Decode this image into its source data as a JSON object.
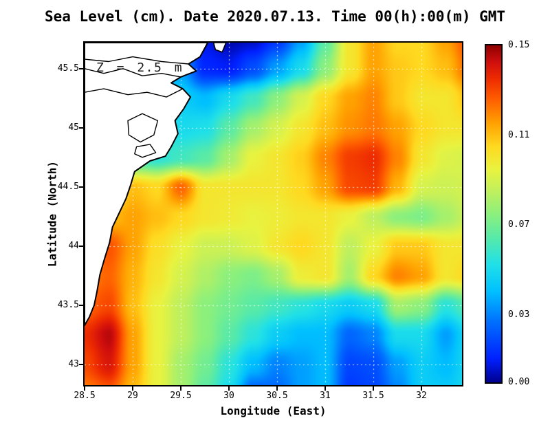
{
  "chart_data": {
    "type": "heatmap",
    "title": "Sea Level (cm). Date 2020.07.13. Time 00(h):00(m) GMT",
    "xlabel": "Longitude (East)",
    "ylabel": "Latitude (North)",
    "annotation": "Z = 2.5 m",
    "x_range": [
      28.5,
      32.42
    ],
    "y_range": [
      42.83,
      45.72
    ],
    "gridlines": {
      "color": "#ffffff",
      "style": "dotted",
      "visible": true
    },
    "x_ticks": [
      {
        "v": 28.5,
        "label": "28.5"
      },
      {
        "v": 29,
        "label": "29"
      },
      {
        "v": 29.5,
        "label": "29.5"
      },
      {
        "v": 30,
        "label": "30"
      },
      {
        "v": 30.5,
        "label": "30.5"
      },
      {
        "v": 31,
        "label": "31"
      },
      {
        "v": 31.5,
        "label": "31.5"
      },
      {
        "v": 32,
        "label": "32"
      }
    ],
    "y_ticks": [
      {
        "v": 45.5,
        "label": "45.5"
      },
      {
        "v": 45,
        "label": "45"
      },
      {
        "v": 44.5,
        "label": "44.5"
      },
      {
        "v": 44,
        "label": "44"
      },
      {
        "v": 43.5,
        "label": "43.5"
      },
      {
        "v": 43,
        "label": "43"
      }
    ],
    "colorbar": {
      "min": 0.0,
      "max": 0.15,
      "ticks": [
        {
          "v": 0.0,
          "label": "0.00"
        },
        {
          "v": 0.03,
          "label": "0.03"
        },
        {
          "v": 0.07,
          "label": "0.07"
        },
        {
          "v": 0.11,
          "label": "0.11"
        },
        {
          "v": 0.15,
          "label": "0.15"
        }
      ]
    },
    "colormap": [
      {
        "t": 0.0,
        "color": "#00008f"
      },
      {
        "t": 0.07,
        "color": "#0020ff"
      },
      {
        "t": 0.18,
        "color": "#0070ff"
      },
      {
        "t": 0.27,
        "color": "#00c0ff"
      },
      {
        "t": 0.35,
        "color": "#20e0e8"
      },
      {
        "t": 0.43,
        "color": "#58eaa8"
      },
      {
        "t": 0.5,
        "color": "#8cf07c"
      },
      {
        "t": 0.57,
        "color": "#c2f05c"
      },
      {
        "t": 0.63,
        "color": "#e8f340"
      },
      {
        "t": 0.7,
        "color": "#ffd920"
      },
      {
        "t": 0.77,
        "color": "#ffa000"
      },
      {
        "t": 0.84,
        "color": "#ff5e00"
      },
      {
        "t": 0.9,
        "color": "#ee2c00"
      },
      {
        "t": 0.95,
        "color": "#cf0e0e"
      },
      {
        "t": 1.0,
        "color": "#8f0000"
      }
    ],
    "grid": {
      "lons": [
        28.5,
        28.75,
        29.0,
        29.25,
        29.5,
        29.75,
        30.0,
        30.25,
        30.5,
        30.75,
        31.0,
        31.25,
        31.5,
        31.75,
        32.0,
        32.25,
        32.5
      ],
      "lats": [
        45.75,
        45.5,
        45.25,
        45.0,
        44.75,
        44.5,
        44.25,
        44.0,
        43.75,
        43.5,
        43.25,
        43.0,
        42.75
      ],
      "values": [
        [
          0.04,
          0.04,
          0.04,
          0.04,
          0.03,
          0.008,
          0.003,
          0.005,
          0.015,
          0.035,
          0.065,
          0.1,
          0.115,
          0.105,
          0.105,
          0.115,
          0.13
        ],
        [
          0.04,
          0.04,
          0.04,
          0.04,
          0.035,
          0.012,
          0.01,
          0.02,
          0.035,
          0.05,
          0.075,
          0.1,
          0.115,
          0.108,
          0.105,
          0.11,
          0.125
        ],
        [
          0.05,
          0.05,
          0.05,
          0.05,
          0.045,
          0.04,
          0.05,
          0.06,
          0.075,
          0.09,
          0.105,
          0.115,
          0.12,
          0.108,
          0.1,
          0.1,
          0.11
        ],
        [
          0.06,
          0.06,
          0.06,
          0.06,
          0.05,
          0.052,
          0.065,
          0.08,
          0.09,
          0.1,
          0.11,
          0.118,
          0.122,
          0.115,
          0.105,
          0.1,
          0.1
        ],
        [
          0.06,
          0.06,
          0.06,
          0.055,
          0.06,
          0.065,
          0.08,
          0.095,
          0.1,
          0.107,
          0.12,
          0.132,
          0.135,
          0.12,
          0.1,
          0.092,
          0.09
        ],
        [
          0.08,
          0.09,
          0.11,
          0.105,
          0.125,
          0.1,
          0.1,
          0.1,
          0.1,
          0.105,
          0.115,
          0.13,
          0.132,
          0.112,
          0.09,
          0.088,
          0.09
        ],
        [
          0.1,
          0.11,
          0.115,
          0.11,
          0.105,
          0.1,
          0.098,
          0.095,
          0.097,
          0.1,
          0.1,
          0.095,
          0.085,
          0.075,
          0.072,
          0.08,
          0.088
        ],
        [
          0.12,
          0.128,
          0.115,
          0.103,
          0.095,
          0.088,
          0.088,
          0.092,
          0.1,
          0.105,
          0.1,
          0.085,
          0.095,
          0.108,
          0.108,
          0.1,
          0.1
        ],
        [
          0.12,
          0.125,
          0.112,
          0.1,
          0.09,
          0.082,
          0.075,
          0.072,
          0.08,
          0.097,
          0.1,
          0.08,
          0.105,
          0.12,
          0.115,
          0.1,
          0.105
        ],
        [
          0.125,
          0.13,
          0.11,
          0.095,
          0.085,
          0.075,
          0.07,
          0.065,
          0.06,
          0.055,
          0.05,
          0.045,
          0.05,
          0.08,
          0.075,
          0.055,
          0.065
        ],
        [
          0.135,
          0.145,
          0.115,
          0.095,
          0.085,
          0.075,
          0.065,
          0.055,
          0.045,
          0.04,
          0.04,
          0.025,
          0.03,
          0.05,
          0.05,
          0.035,
          0.05
        ],
        [
          0.13,
          0.14,
          0.115,
          0.095,
          0.08,
          0.07,
          0.055,
          0.04,
          0.03,
          0.035,
          0.04,
          0.018,
          0.02,
          0.035,
          0.045,
          0.04,
          0.05
        ],
        [
          0.12,
          0.125,
          0.11,
          0.095,
          0.08,
          0.065,
          0.05,
          0.022,
          0.025,
          0.035,
          0.04,
          0.015,
          0.018,
          0.03,
          0.045,
          0.045,
          0.05
        ]
      ]
    },
    "coastline": {
      "land": [
        [
          29.78,
          45.72
        ],
        [
          29.7,
          45.6
        ],
        [
          29.58,
          45.54
        ],
        [
          29.66,
          45.48
        ],
        [
          29.5,
          45.43
        ],
        [
          29.4,
          45.38
        ],
        [
          29.52,
          45.33
        ],
        [
          29.6,
          45.26
        ],
        [
          29.53,
          45.16
        ],
        [
          29.44,
          45.06
        ],
        [
          29.47,
          44.95
        ],
        [
          29.4,
          44.84
        ],
        [
          29.34,
          44.76
        ],
        [
          29.18,
          44.72
        ],
        [
          29.02,
          44.63
        ],
        [
          28.98,
          44.52
        ],
        [
          28.93,
          44.4
        ],
        [
          28.86,
          44.28
        ],
        [
          28.79,
          44.16
        ],
        [
          28.76,
          44.03
        ],
        [
          28.71,
          43.9
        ],
        [
          28.66,
          43.76
        ],
        [
          28.63,
          43.62
        ],
        [
          28.6,
          43.5
        ],
        [
          28.55,
          43.4
        ],
        [
          28.5,
          43.33
        ]
      ],
      "lakes": [
        [
          [
            28.95,
            45.06
          ],
          [
            29.1,
            45.12
          ],
          [
            29.26,
            45.06
          ],
          [
            29.22,
            44.94
          ],
          [
            29.08,
            44.88
          ],
          [
            28.96,
            44.94
          ]
        ],
        [
          [
            29.04,
            44.84
          ],
          [
            29.18,
            44.86
          ],
          [
            29.24,
            44.79
          ],
          [
            29.1,
            44.75
          ],
          [
            29.02,
            44.78
          ]
        ]
      ],
      "rivers": [
        [
          [
            28.5,
            45.58
          ],
          [
            28.75,
            45.56
          ],
          [
            29.0,
            45.6
          ],
          [
            29.3,
            45.56
          ],
          [
            29.58,
            45.54
          ]
        ],
        [
          [
            28.5,
            45.5
          ],
          [
            28.7,
            45.46
          ],
          [
            28.9,
            45.5
          ],
          [
            29.1,
            45.44
          ],
          [
            29.3,
            45.46
          ],
          [
            29.5,
            45.43
          ]
        ],
        [
          [
            28.5,
            45.3
          ],
          [
            28.7,
            45.33
          ],
          [
            28.95,
            45.28
          ],
          [
            29.15,
            45.3
          ],
          [
            29.35,
            45.26
          ],
          [
            29.52,
            45.33
          ]
        ]
      ],
      "islands": [
        [
          [
            29.84,
            45.72
          ],
          [
            29.97,
            45.72
          ],
          [
            29.93,
            45.64
          ],
          [
            29.86,
            45.66
          ]
        ]
      ]
    }
  }
}
